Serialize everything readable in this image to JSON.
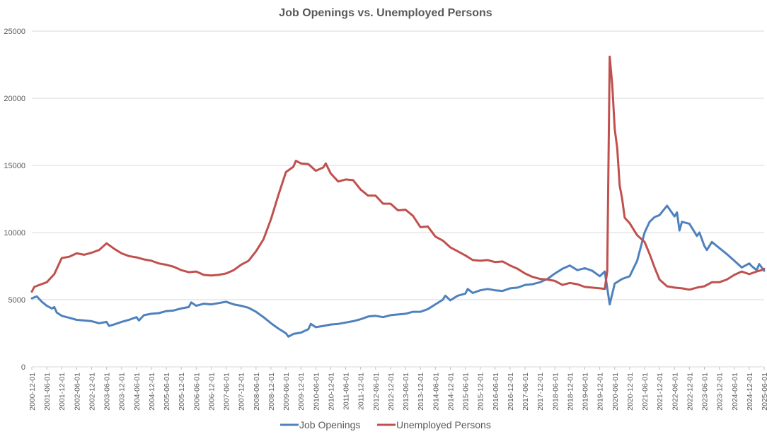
{
  "chart_data": {
    "type": "line",
    "title": "Job Openings vs. Unemployed Persons",
    "xlabel": "",
    "ylabel": "",
    "ylim": [
      0,
      25000
    ],
    "yticks": [
      "0",
      "5000",
      "10000",
      "15000",
      "20000",
      "25000"
    ],
    "x_range": [
      "2000-12-01",
      "2025-06-01"
    ],
    "xticks": [
      "2000-12-01",
      "2001-06-01",
      "2001-12-01",
      "2002-06-01",
      "2002-12-01",
      "2003-06-01",
      "2003-12-01",
      "2004-06-01",
      "2004-12-01",
      "2005-06-01",
      "2005-12-01",
      "2006-06-01",
      "2006-12-01",
      "2007-06-01",
      "2007-12-01",
      "2008-06-01",
      "2008-12-01",
      "2009-06-01",
      "2009-12-01",
      "2010-06-01",
      "2010-12-01",
      "2011-06-01",
      "2011-12-01",
      "2012-06-01",
      "2012-12-01",
      "2013-06-01",
      "2013-12-01",
      "2014-06-01",
      "2014-12-01",
      "2015-06-01",
      "2015-12-01",
      "2016-06-01",
      "2016-12-01",
      "2017-06-01",
      "2017-12-01",
      "2018-06-01",
      "2018-12-01",
      "2019-06-01",
      "2019-12-01",
      "2020-06-01",
      "2020-12-01",
      "2021-06-01",
      "2021-12-01",
      "2022-06-01",
      "2022-12-01",
      "2023-06-01",
      "2023-12-01",
      "2024-06-01",
      "2024-12-01",
      "2025-06-01"
    ],
    "grid": "horizontal",
    "legend": "bottom",
    "series": [
      {
        "name": "Job Openings",
        "color": "#4F81BD",
        "points": [
          [
            "2000-12-01",
            5100
          ],
          [
            "2001-02-01",
            5250
          ],
          [
            "2001-04-01",
            4850
          ],
          [
            "2001-06-01",
            4550
          ],
          [
            "2001-08-01",
            4350
          ],
          [
            "2001-09-01",
            4450
          ],
          [
            "2001-10-01",
            4050
          ],
          [
            "2001-12-01",
            3800
          ],
          [
            "2002-03-01",
            3650
          ],
          [
            "2002-06-01",
            3500
          ],
          [
            "2002-09-01",
            3450
          ],
          [
            "2002-12-01",
            3400
          ],
          [
            "2003-03-01",
            3250
          ],
          [
            "2003-06-01",
            3350
          ],
          [
            "2003-07-01",
            3050
          ],
          [
            "2003-09-01",
            3150
          ],
          [
            "2003-12-01",
            3350
          ],
          [
            "2004-03-01",
            3500
          ],
          [
            "2004-06-01",
            3700
          ],
          [
            "2004-07-01",
            3450
          ],
          [
            "2004-09-01",
            3850
          ],
          [
            "2004-12-01",
            3950
          ],
          [
            "2005-03-01",
            4000
          ],
          [
            "2005-06-01",
            4150
          ],
          [
            "2005-09-01",
            4200
          ],
          [
            "2005-12-01",
            4350
          ],
          [
            "2006-03-01",
            4450
          ],
          [
            "2006-04-01",
            4800
          ],
          [
            "2006-06-01",
            4550
          ],
          [
            "2006-09-01",
            4700
          ],
          [
            "2006-12-01",
            4650
          ],
          [
            "2007-03-01",
            4750
          ],
          [
            "2007-06-01",
            4850
          ],
          [
            "2007-09-01",
            4650
          ],
          [
            "2007-12-01",
            4550
          ],
          [
            "2008-03-01",
            4400
          ],
          [
            "2008-06-01",
            4100
          ],
          [
            "2008-09-01",
            3700
          ],
          [
            "2008-12-01",
            3250
          ],
          [
            "2009-03-01",
            2850
          ],
          [
            "2009-06-01",
            2500
          ],
          [
            "2009-07-01",
            2250
          ],
          [
            "2009-09-01",
            2450
          ],
          [
            "2009-12-01",
            2550
          ],
          [
            "2010-03-01",
            2800
          ],
          [
            "2010-04-01",
            3200
          ],
          [
            "2010-06-01",
            2950
          ],
          [
            "2010-09-01",
            3050
          ],
          [
            "2010-12-01",
            3150
          ],
          [
            "2011-03-01",
            3200
          ],
          [
            "2011-06-01",
            3300
          ],
          [
            "2011-09-01",
            3400
          ],
          [
            "2011-12-01",
            3550
          ],
          [
            "2012-03-01",
            3750
          ],
          [
            "2012-06-01",
            3800
          ],
          [
            "2012-09-01",
            3700
          ],
          [
            "2012-12-01",
            3850
          ],
          [
            "2013-03-01",
            3900
          ],
          [
            "2013-06-01",
            3950
          ],
          [
            "2013-09-01",
            4100
          ],
          [
            "2013-12-01",
            4100
          ],
          [
            "2014-03-01",
            4300
          ],
          [
            "2014-06-01",
            4650
          ],
          [
            "2014-09-01",
            5000
          ],
          [
            "2014-10-01",
            5300
          ],
          [
            "2014-12-01",
            4950
          ],
          [
            "2015-03-01",
            5300
          ],
          [
            "2015-06-01",
            5450
          ],
          [
            "2015-07-01",
            5800
          ],
          [
            "2015-09-01",
            5500
          ],
          [
            "2015-12-01",
            5700
          ],
          [
            "2016-03-01",
            5800
          ],
          [
            "2016-06-01",
            5700
          ],
          [
            "2016-09-01",
            5650
          ],
          [
            "2016-12-01",
            5850
          ],
          [
            "2017-03-01",
            5900
          ],
          [
            "2017-06-01",
            6100
          ],
          [
            "2017-09-01",
            6150
          ],
          [
            "2017-12-01",
            6300
          ],
          [
            "2018-03-01",
            6550
          ],
          [
            "2018-06-01",
            6950
          ],
          [
            "2018-09-01",
            7300
          ],
          [
            "2018-12-01",
            7550
          ],
          [
            "2019-03-01",
            7200
          ],
          [
            "2019-06-01",
            7350
          ],
          [
            "2019-09-01",
            7150
          ],
          [
            "2019-12-01",
            6750
          ],
          [
            "2020-02-01",
            7100
          ],
          [
            "2020-04-01",
            4650
          ],
          [
            "2020-06-01",
            6200
          ],
          [
            "2020-09-01",
            6550
          ],
          [
            "2020-12-01",
            6750
          ],
          [
            "2021-03-01",
            7900
          ],
          [
            "2021-06-01",
            10000
          ],
          [
            "2021-08-01",
            10800
          ],
          [
            "2021-10-01",
            11150
          ],
          [
            "2021-12-01",
            11300
          ],
          [
            "2022-03-01",
            12000
          ],
          [
            "2022-06-01",
            11200
          ],
          [
            "2022-07-01",
            11500
          ],
          [
            "2022-08-01",
            10150
          ],
          [
            "2022-09-01",
            10800
          ],
          [
            "2022-12-01",
            10650
          ],
          [
            "2023-03-01",
            9750
          ],
          [
            "2023-04-01",
            10000
          ],
          [
            "2023-06-01",
            9000
          ],
          [
            "2023-07-01",
            8700
          ],
          [
            "2023-09-01",
            9300
          ],
          [
            "2023-12-01",
            8850
          ],
          [
            "2024-03-01",
            8400
          ],
          [
            "2024-06-01",
            7900
          ],
          [
            "2024-09-01",
            7400
          ],
          [
            "2024-12-01",
            7700
          ],
          [
            "2025-01-01",
            7500
          ],
          [
            "2025-03-01",
            7200
          ],
          [
            "2025-04-01",
            7650
          ],
          [
            "2025-06-01",
            7150
          ]
        ]
      },
      {
        "name": "Unemployed Persons",
        "color": "#C0504D",
        "points": [
          [
            "2000-12-01",
            5600
          ],
          [
            "2001-01-01",
            5950
          ],
          [
            "2001-03-01",
            6100
          ],
          [
            "2001-06-01",
            6300
          ],
          [
            "2001-09-01",
            6900
          ],
          [
            "2001-12-01",
            8100
          ],
          [
            "2002-03-01",
            8200
          ],
          [
            "2002-06-01",
            8450
          ],
          [
            "2002-09-01",
            8350
          ],
          [
            "2002-12-01",
            8500
          ],
          [
            "2003-03-01",
            8700
          ],
          [
            "2003-06-01",
            9200
          ],
          [
            "2003-09-01",
            8800
          ],
          [
            "2003-12-01",
            8450
          ],
          [
            "2004-03-01",
            8250
          ],
          [
            "2004-06-01",
            8150
          ],
          [
            "2004-09-01",
            8000
          ],
          [
            "2004-12-01",
            7900
          ],
          [
            "2005-03-01",
            7700
          ],
          [
            "2005-06-01",
            7600
          ],
          [
            "2005-09-01",
            7450
          ],
          [
            "2005-12-01",
            7200
          ],
          [
            "2006-03-01",
            7050
          ],
          [
            "2006-06-01",
            7100
          ],
          [
            "2006-09-01",
            6850
          ],
          [
            "2006-12-01",
            6800
          ],
          [
            "2007-03-01",
            6850
          ],
          [
            "2007-06-01",
            6950
          ],
          [
            "2007-09-01",
            7200
          ],
          [
            "2007-12-01",
            7600
          ],
          [
            "2008-03-01",
            7900
          ],
          [
            "2008-06-01",
            8600
          ],
          [
            "2008-09-01",
            9500
          ],
          [
            "2008-12-01",
            11000
          ],
          [
            "2009-03-01",
            12800
          ],
          [
            "2009-06-01",
            14500
          ],
          [
            "2009-09-01",
            14900
          ],
          [
            "2009-10-01",
            15350
          ],
          [
            "2009-12-01",
            15150
          ],
          [
            "2010-03-01",
            15100
          ],
          [
            "2010-06-01",
            14600
          ],
          [
            "2010-09-01",
            14850
          ],
          [
            "2010-10-01",
            15150
          ],
          [
            "2010-12-01",
            14400
          ],
          [
            "2011-03-01",
            13800
          ],
          [
            "2011-06-01",
            13950
          ],
          [
            "2011-09-01",
            13900
          ],
          [
            "2011-12-01",
            13200
          ],
          [
            "2012-03-01",
            12750
          ],
          [
            "2012-06-01",
            12750
          ],
          [
            "2012-09-01",
            12150
          ],
          [
            "2012-12-01",
            12150
          ],
          [
            "2013-03-01",
            11650
          ],
          [
            "2013-06-01",
            11700
          ],
          [
            "2013-09-01",
            11250
          ],
          [
            "2013-12-01",
            10400
          ],
          [
            "2014-03-01",
            10450
          ],
          [
            "2014-06-01",
            9700
          ],
          [
            "2014-09-01",
            9400
          ],
          [
            "2014-12-01",
            8900
          ],
          [
            "2015-03-01",
            8600
          ],
          [
            "2015-06-01",
            8300
          ],
          [
            "2015-09-01",
            7950
          ],
          [
            "2015-12-01",
            7900
          ],
          [
            "2016-03-01",
            7950
          ],
          [
            "2016-06-01",
            7800
          ],
          [
            "2016-09-01",
            7850
          ],
          [
            "2016-12-01",
            7550
          ],
          [
            "2017-03-01",
            7300
          ],
          [
            "2017-06-01",
            6950
          ],
          [
            "2017-09-01",
            6700
          ],
          [
            "2017-12-01",
            6550
          ],
          [
            "2018-03-01",
            6500
          ],
          [
            "2018-06-01",
            6400
          ],
          [
            "2018-09-01",
            6100
          ],
          [
            "2018-12-01",
            6250
          ],
          [
            "2019-03-01",
            6150
          ],
          [
            "2019-06-01",
            5950
          ],
          [
            "2019-09-01",
            5900
          ],
          [
            "2019-12-01",
            5850
          ],
          [
            "2020-02-01",
            5800
          ],
          [
            "2020-03-01",
            7100
          ],
          [
            "2020-04-01",
            23100
          ],
          [
            "2020-05-01",
            21000
          ],
          [
            "2020-06-01",
            17700
          ],
          [
            "2020-07-01",
            16300
          ],
          [
            "2020-08-01",
            13500
          ],
          [
            "2020-09-01",
            12500
          ],
          [
            "2020-10-01",
            11100
          ],
          [
            "2020-12-01",
            10700
          ],
          [
            "2021-03-01",
            9800
          ],
          [
            "2021-06-01",
            9300
          ],
          [
            "2021-08-01",
            8400
          ],
          [
            "2021-10-01",
            7400
          ],
          [
            "2021-12-01",
            6500
          ],
          [
            "2022-03-01",
            6000
          ],
          [
            "2022-06-01",
            5900
          ],
          [
            "2022-09-01",
            5850
          ],
          [
            "2022-12-01",
            5750
          ],
          [
            "2023-03-01",
            5900
          ],
          [
            "2023-06-01",
            6000
          ],
          [
            "2023-09-01",
            6300
          ],
          [
            "2023-12-01",
            6300
          ],
          [
            "2024-03-01",
            6500
          ],
          [
            "2024-06-01",
            6850
          ],
          [
            "2024-09-01",
            7100
          ],
          [
            "2024-12-01",
            6900
          ],
          [
            "2025-03-01",
            7100
          ],
          [
            "2025-05-01",
            7200
          ],
          [
            "2025-06-01",
            7300
          ]
        ]
      }
    ]
  }
}
